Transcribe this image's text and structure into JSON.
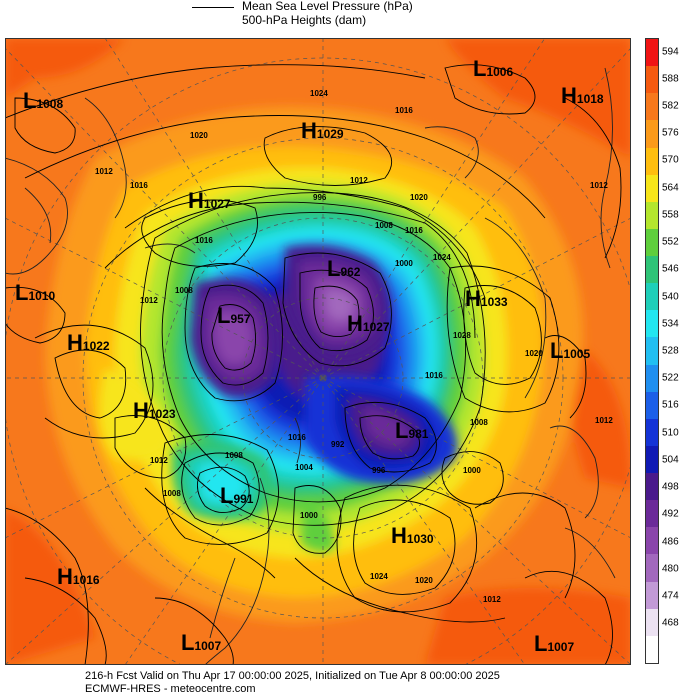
{
  "header": {
    "line1": "Mean Sea Level Pressure (hPa)",
    "line2": "500-hPa Heights (dam)"
  },
  "footer": {
    "line1": "216-h Fcst Valid on Thu Apr 17 00:00:00 2025, Initialized on Tue Apr  8 00:00:00 2025",
    "line2": "ECMWF-HRES  - meteocentre.com"
  },
  "colorbar": [
    {
      "label": "594",
      "color": "#f01414"
    },
    {
      "label": "588",
      "color": "#f55a10"
    },
    {
      "label": "582",
      "color": "#f7781c"
    },
    {
      "label": "576",
      "color": "#fb9a1a"
    },
    {
      "label": "570",
      "color": "#ffbe0f"
    },
    {
      "label": "564",
      "color": "#f7e51a"
    },
    {
      "label": "558",
      "color": "#b4e62d"
    },
    {
      "label": "552",
      "color": "#5fcf3c"
    },
    {
      "label": "546",
      "color": "#2ec477"
    },
    {
      "label": "540",
      "color": "#1ecfb9"
    },
    {
      "label": "534",
      "color": "#22e6f0"
    },
    {
      "label": "528",
      "color": "#21bff2"
    },
    {
      "label": "522",
      "color": "#1f8ff0"
    },
    {
      "label": "516",
      "color": "#1c5fe8"
    },
    {
      "label": "510",
      "color": "#1433d6"
    },
    {
      "label": "504",
      "color": "#101ab4"
    },
    {
      "label": "498",
      "color": "#4a1a8c"
    },
    {
      "label": "492",
      "color": "#6b2a99"
    },
    {
      "label": "486",
      "color": "#8a45ab"
    },
    {
      "label": "480",
      "color": "#a268bd"
    },
    {
      "label": "474",
      "color": "#c29ad6"
    },
    {
      "label": "468",
      "color": "#ece2f2"
    },
    {
      "label": "",
      "color": "#ffffff"
    }
  ],
  "centers": [
    {
      "type": "L",
      "value": "1008"
    },
    {
      "type": "L",
      "value": "1006"
    },
    {
      "type": "H",
      "value": "1018"
    },
    {
      "type": "H",
      "value": "1029"
    },
    {
      "type": "H",
      "value": "1027"
    },
    {
      "type": "L",
      "value": "962"
    },
    {
      "type": "L",
      "value": "1010"
    },
    {
      "type": "L",
      "value": "957"
    },
    {
      "type": "H",
      "value": "1027"
    },
    {
      "type": "H",
      "value": "1033"
    },
    {
      "type": "H",
      "value": "1022"
    },
    {
      "type": "L",
      "value": "1005"
    },
    {
      "type": "H",
      "value": "1023"
    },
    {
      "type": "L",
      "value": "981"
    },
    {
      "type": "L",
      "value": "991"
    },
    {
      "type": "H",
      "value": "1030"
    },
    {
      "type": "H",
      "value": "1016"
    },
    {
      "type": "L",
      "value": "1007"
    },
    {
      "type": "L",
      "value": "1007"
    }
  ],
  "isobar_labels": [
    "1016",
    "1024",
    "1020",
    "1012",
    "1016",
    "1016",
    "996",
    "1012",
    "1008",
    "1020",
    "1024",
    "1016",
    "1012",
    "1008",
    "1000",
    "1012",
    "1028",
    "1020",
    "1016",
    "1008",
    "1000",
    "996",
    "992",
    "1004",
    "1008",
    "1012",
    "1016",
    "1008",
    "1000",
    "1024",
    "1020",
    "1012",
    "1012"
  ]
}
